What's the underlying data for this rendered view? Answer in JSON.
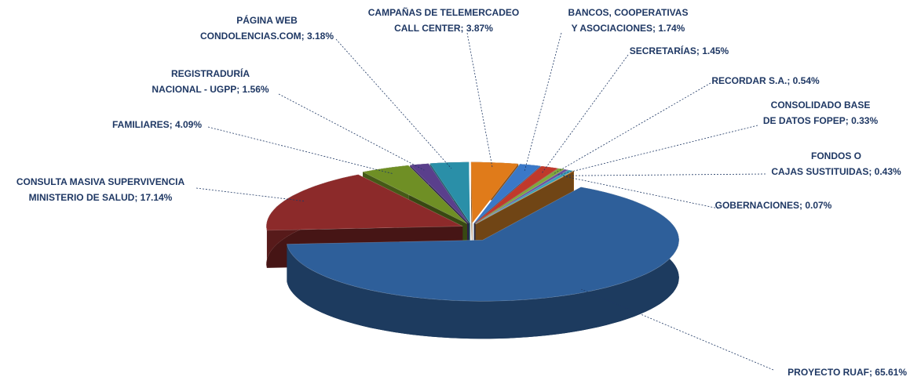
{
  "chart_data": {
    "type": "pie",
    "values": [
      65.61,
      17.14,
      4.09,
      1.56,
      3.18,
      3.87,
      1.74,
      1.45,
      0.54,
      0.33,
      0.43,
      0.07
    ],
    "value_labels": [
      [
        "PROYECTO RUAF; 65.61%"
      ],
      [
        "CONSULTA MASIVA SUPERVIVENCIA",
        "MINISTERIO DE SALUD; 17.14%"
      ],
      [
        "FAMILIARES; 4.09%"
      ],
      [
        "REGISTRADURÍA",
        "NACIONAL - UGPP; 1.56%"
      ],
      [
        "PÁGINA WEB",
        "CONDOLENCIAS.COM; 3.18%"
      ],
      [
        "CAMPAÑAS DE TELEMERCADEO",
        "CALL CENTER; 3.87%"
      ],
      [
        "BANCOS, COOPERATIVAS",
        "Y ASOCIACIONES; 1.74%"
      ],
      [
        "SECRETARÍAS; 1.45%"
      ],
      [
        "RECORDAR S.A.; 0.54%"
      ],
      [
        "CONSOLIDADO BASE",
        "DE DATOS FOPEP; 0.33%"
      ],
      [
        "FONDOS O",
        "CAJAS SUSTITUIDAS; 0.43%"
      ],
      [
        "GOBERNACIONES; 0.07%"
      ]
    ],
    "colors": [
      "#2e5f9a",
      "#8c2a2a",
      "#6f8f25",
      "#5a3f8c",
      "#2a8fa8",
      "#e07b1a",
      "#3a78c8",
      "#c0392b",
      "#7fa83a",
      "#6a4fa0",
      "#3aa0b8",
      "#e08a2a"
    ]
  }
}
